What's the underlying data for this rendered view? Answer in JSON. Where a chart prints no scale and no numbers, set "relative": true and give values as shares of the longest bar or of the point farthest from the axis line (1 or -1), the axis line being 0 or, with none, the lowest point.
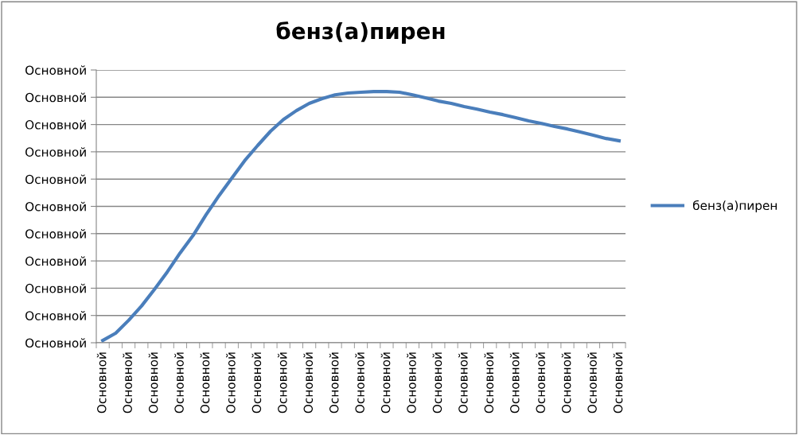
{
  "chart_data": {
    "type": "line",
    "title": "бенз(а)пирен",
    "relative": true,
    "categories": [
      "Основной",
      null,
      "Основной",
      null,
      "Основной",
      null,
      "Основной",
      null,
      "Основной",
      null,
      "Основной",
      null,
      "Основной",
      null,
      "Основной",
      null,
      "Основной",
      null,
      "Основной",
      null,
      "Основной",
      null,
      "Основной",
      null,
      "Основной",
      null,
      "Основной",
      null,
      "Основной",
      null,
      "Основной",
      null,
      "Основной",
      null,
      "Основной",
      null,
      "Основной",
      null,
      "Основной",
      null,
      "Основной"
    ],
    "series": [
      {
        "name": "бенз(а)пирен",
        "color": "#4a7ebb",
        "values": [
          0.009,
          0.038,
          0.089,
          0.146,
          0.212,
          0.282,
          0.358,
          0.427,
          0.509,
          0.585,
          0.655,
          0.725,
          0.785,
          0.842,
          0.889,
          0.924,
          0.953,
          0.972,
          0.987,
          0.994,
          0.997,
          1,
          1,
          0.997,
          0.987,
          0.975,
          0.962,
          0.953,
          0.94,
          0.93,
          0.918,
          0.908,
          0.896,
          0.883,
          0.873,
          0.861,
          0.851,
          0.839,
          0.826,
          0.813,
          0.804
        ]
      }
    ],
    "annotations": [
      "Основной",
      "Основной",
      "Основной",
      "Основной",
      "Основной",
      "Основной",
      "Основной",
      "Основной",
      "Основной",
      "Основной",
      "Основной"
    ],
    "grid": "y",
    "legend": "right",
    "marker": "none",
    "line_style": "solid"
  }
}
